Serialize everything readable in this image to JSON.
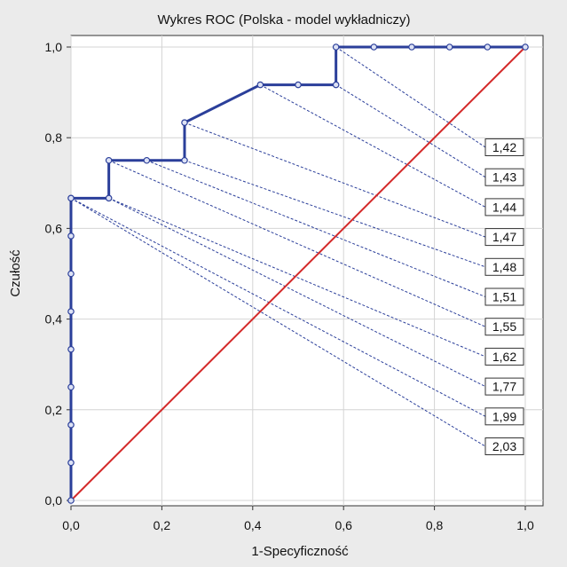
{
  "chart_data": {
    "type": "line",
    "title": "Wykres ROC  (Polska - model wykładniczy)",
    "xlabel": "1-Specyficzność",
    "ylabel": "Czułość",
    "xlim": [
      0,
      1
    ],
    "ylim": [
      0,
      1
    ],
    "x_ticks": [
      "0,0",
      "0,2",
      "0,4",
      "0,6",
      "0,8",
      "1,0"
    ],
    "y_ticks": [
      "0,0",
      "0,2",
      "0,4",
      "0,6",
      "0,8",
      "1,0"
    ],
    "grid": true,
    "series": [
      {
        "role": "roc-curve",
        "color": "#2b3f9a",
        "points": [
          [
            0,
            0
          ],
          [
            0,
            0.0833
          ],
          [
            0,
            0.1667
          ],
          [
            0,
            0.25
          ],
          [
            0,
            0.3333
          ],
          [
            0,
            0.4167
          ],
          [
            0,
            0.5
          ],
          [
            0,
            0.5833
          ],
          [
            0,
            0.6667
          ],
          [
            0.0833,
            0.6667
          ],
          [
            0.0833,
            0.75
          ],
          [
            0.1667,
            0.75
          ],
          [
            0.25,
            0.75
          ],
          [
            0.25,
            0.8333
          ],
          [
            0.4167,
            0.9167
          ],
          [
            0.5,
            0.9167
          ],
          [
            0.5833,
            0.9167
          ],
          [
            0.5833,
            1.0
          ],
          [
            0.6667,
            1.0
          ],
          [
            0.75,
            1.0
          ],
          [
            0.8333,
            1.0
          ],
          [
            0.9167,
            1.0
          ],
          [
            1.0,
            1.0
          ]
        ]
      },
      {
        "role": "reference-diagonal",
        "color": "#d42a2a",
        "points": [
          [
            0,
            0
          ],
          [
            1,
            1
          ]
        ]
      }
    ],
    "thresholds": [
      {
        "label": "1,42",
        "x": 0.5833,
        "y": 1.0
      },
      {
        "label": "1,43",
        "x": 0.5833,
        "y": 0.9167
      },
      {
        "label": "1,44",
        "x": 0.4167,
        "y": 0.9167
      },
      {
        "label": "1,47",
        "x": 0.25,
        "y": 0.8333
      },
      {
        "label": "1,48",
        "x": 0.25,
        "y": 0.75
      },
      {
        "label": "1,51",
        "x": 0.1667,
        "y": 0.75
      },
      {
        "label": "1,55",
        "x": 0.0833,
        "y": 0.75
      },
      {
        "label": "1,62",
        "x": 0.0833,
        "y": 0.6667
      },
      {
        "label": "1,77",
        "x": 0.0833,
        "y": 0.6667
      },
      {
        "label": "1,99",
        "x": 0.0,
        "y": 0.6667
      },
      {
        "label": "2,03",
        "x": 0.0,
        "y": 0.6667
      }
    ]
  }
}
